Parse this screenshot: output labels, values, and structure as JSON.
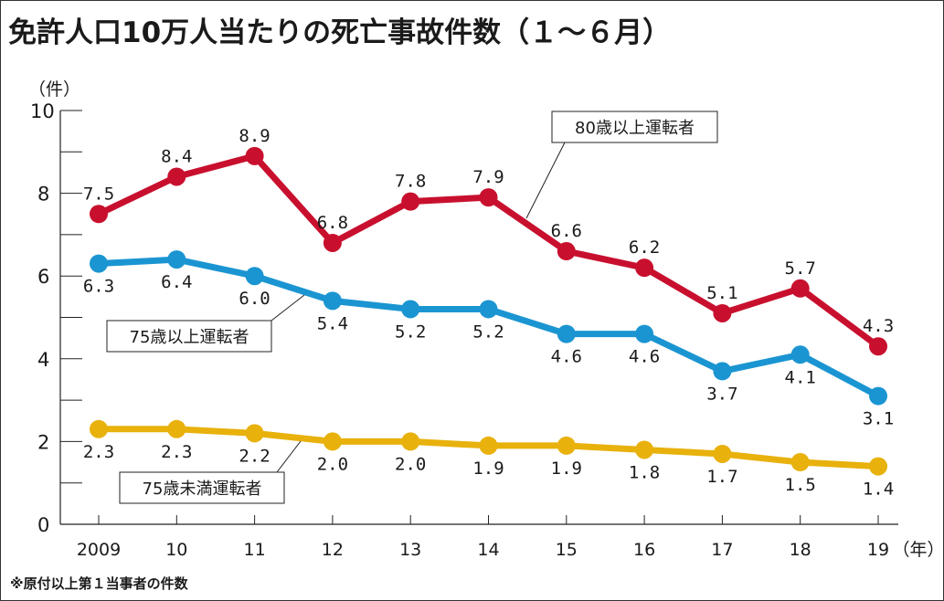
{
  "chart_data": {
    "type": "line",
    "title": "免許人口10万人当たりの死亡事故件数（１～６月）",
    "ylabel": "（件）",
    "xlabel": "（年）",
    "ylim": [
      0,
      10
    ],
    "yticks": [
      0,
      2,
      4,
      6,
      8,
      10
    ],
    "ytick_labels": [
      "0",
      "2",
      "4",
      "6",
      "8",
      "10"
    ],
    "y_minor_ticks": [
      1,
      3,
      5,
      7,
      9
    ],
    "categories": [
      "2009",
      "10",
      "11",
      "12",
      "13",
      "14",
      "15",
      "16",
      "17",
      "18",
      "19"
    ],
    "grid": false,
    "series": [
      {
        "name": "80歳以上運転者",
        "color": "#c8102e",
        "values": [
          7.5,
          8.4,
          8.9,
          6.8,
          7.8,
          7.9,
          6.6,
          6.2,
          5.1,
          5.7,
          4.3
        ],
        "labels": [
          "7.5",
          "8.4",
          "8.9",
          "6.8",
          "7.8",
          "7.9",
          "6.6",
          "6.2",
          "5.1",
          "5.7",
          "4.3"
        ],
        "label_position": "above"
      },
      {
        "name": "75歳以上運転者",
        "color": "#1b95d2",
        "values": [
          6.3,
          6.4,
          6.0,
          5.4,
          5.2,
          5.2,
          4.6,
          4.6,
          3.7,
          4.1,
          3.1
        ],
        "labels": [
          "6.3",
          "6.4",
          "6.0",
          "5.4",
          "5.2",
          "5.2",
          "4.6",
          "4.6",
          "3.7",
          "4.1",
          "3.1"
        ],
        "label_position": "below"
      },
      {
        "name": "75歳未満運転者",
        "color": "#e8b10c",
        "values": [
          2.3,
          2.3,
          2.2,
          2.0,
          2.0,
          1.9,
          1.9,
          1.8,
          1.7,
          1.5,
          1.4
        ],
        "labels": [
          "2.3",
          "2.3",
          "2.2",
          "2.0",
          "2.0",
          "1.9",
          "1.9",
          "1.8",
          "1.7",
          "1.5",
          "1.4"
        ],
        "label_position": "below"
      }
    ],
    "footnote": "※原付以上第１当事者の件数"
  }
}
